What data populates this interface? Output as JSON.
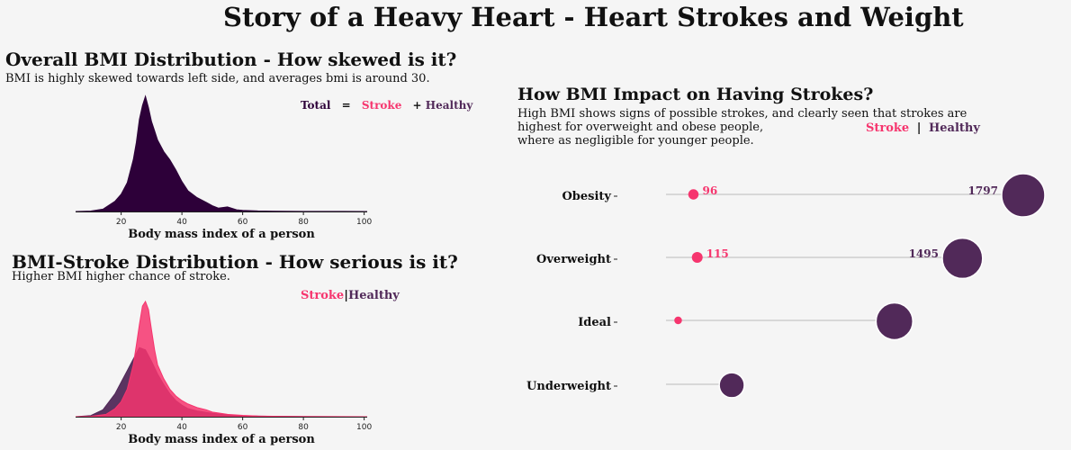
{
  "title": "Story of a Heavy Heart - Heart Strokes and Weight",
  "colors": {
    "total": "#2d0039",
    "stroke": "#f6356e",
    "healthy": "#512959",
    "background": "#f5f5f5",
    "connector": "#d8d8d8"
  },
  "panel1": {
    "title": "Overall BMI Distribution - How skewed is it?",
    "subtitle": "BMI is highly skewed towards left side, and averages bmi is around 30.",
    "legend": {
      "total": "Total",
      "equals": "=",
      "stroke": "Stroke",
      "plus": "+",
      "healthy": "Healthy"
    }
  },
  "panel2": {
    "title": "BMI-Stroke Distribution - How serious is it?",
    "subtitle": "Higher BMI higher chance of stroke.",
    "legend": {
      "stroke": "Stroke",
      "sep": "|",
      "healthy": "Healthy"
    }
  },
  "panel3": {
    "title": "How BMI Impact on Having Strokes?",
    "subtitle_lines": [
      "High BMI shows signs of possible strokes, and clearly seen that strokes are",
      "highest for overweight and obese people,",
      "where as negligible for younger people."
    ],
    "legend": {
      "stroke": "Stroke",
      "sep": "|",
      "healthy": "Healthy"
    }
  },
  "chart_data": [
    {
      "type": "area",
      "xlabel": "Body mass index of a person",
      "ylabel": "",
      "xlim": [
        5,
        101
      ],
      "xticks": [
        20,
        40,
        60,
        80,
        100
      ],
      "grid": false,
      "series": [
        {
          "name": "Total",
          "x": [
            5,
            10,
            14,
            18,
            20,
            22,
            24,
            25,
            26,
            27,
            28,
            29,
            30,
            31,
            32,
            34,
            36,
            38,
            40,
            42,
            45,
            48,
            50,
            52,
            55,
            58,
            60,
            65,
            70,
            80,
            90,
            101
          ],
          "y": [
            0,
            0.004,
            0.02,
            0.09,
            0.15,
            0.25,
            0.45,
            0.6,
            0.8,
            0.92,
            1.0,
            0.9,
            0.78,
            0.7,
            0.62,
            0.52,
            0.45,
            0.36,
            0.26,
            0.18,
            0.12,
            0.08,
            0.05,
            0.03,
            0.04,
            0.015,
            0.01,
            0.005,
            0.003,
            0.001,
            0.0005,
            0
          ]
        }
      ]
    },
    {
      "type": "area",
      "xlabel": "Body mass index of a person",
      "ylabel": "",
      "xlim": [
        5,
        101
      ],
      "xticks": [
        20,
        40,
        60,
        80,
        100
      ],
      "grid": false,
      "series": [
        {
          "name": "Healthy",
          "x": [
            5,
            10,
            14,
            18,
            20,
            22,
            24,
            26,
            28,
            30,
            32,
            34,
            36,
            38,
            40,
            42,
            45,
            50,
            55,
            60,
            70,
            80,
            101
          ],
          "y": [
            0,
            0.01,
            0.06,
            0.2,
            0.3,
            0.4,
            0.5,
            0.6,
            0.58,
            0.48,
            0.37,
            0.28,
            0.2,
            0.14,
            0.1,
            0.07,
            0.05,
            0.03,
            0.015,
            0.008,
            0.003,
            0.001,
            0
          ]
        },
        {
          "name": "Stroke",
          "x": [
            5,
            10,
            15,
            18,
            20,
            22,
            24,
            25,
            26,
            27,
            28,
            29,
            30,
            31,
            32,
            34,
            36,
            38,
            40,
            42,
            45,
            48,
            50,
            55,
            60,
            65,
            70,
            80,
            101
          ],
          "y": [
            0,
            0.003,
            0.02,
            0.07,
            0.13,
            0.24,
            0.45,
            0.62,
            0.8,
            0.96,
            1.0,
            0.93,
            0.75,
            0.58,
            0.45,
            0.33,
            0.24,
            0.18,
            0.14,
            0.11,
            0.08,
            0.06,
            0.04,
            0.02,
            0.012,
            0.006,
            0.004,
            0.002,
            0
          ]
        }
      ]
    },
    {
      "type": "scatter",
      "categories": [
        "Obesity",
        "Overweight",
        "Ideal",
        "Underweight"
      ],
      "series": [
        {
          "name": "Stroke",
          "values": [
            96,
            115,
            20,
            0
          ],
          "labels": [
            "96",
            "115",
            "",
            ""
          ]
        },
        {
          "name": "Healthy",
          "values": [
            1797,
            1495,
            1157,
            349
          ],
          "labels": [
            "1797",
            "1495",
            "",
            ""
          ]
        }
      ],
      "xlim": [
        0,
        1900
      ]
    }
  ]
}
